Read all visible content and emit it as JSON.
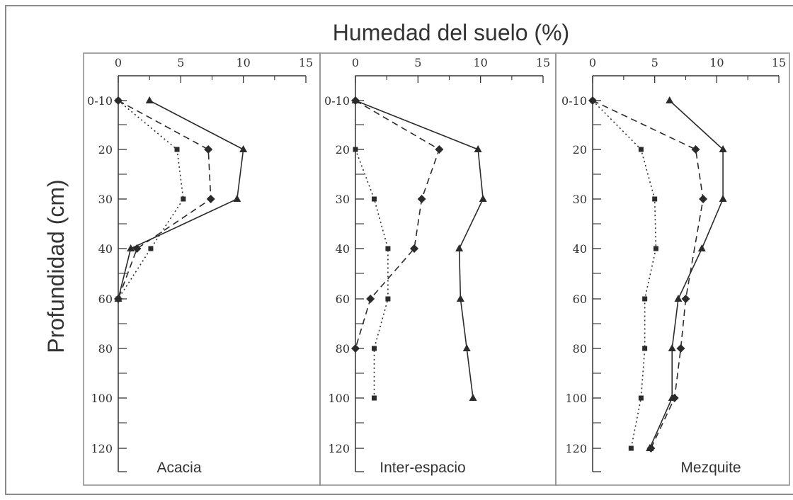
{
  "figure": {
    "title": "Humedad del suelo (%)",
    "ylabel": "Profundidad (cm)"
  },
  "style": {
    "frame": "#8a8a8a",
    "axis": "#333333",
    "series_color": "#2b2b2b"
  },
  "chart_data": [
    {
      "type": "line",
      "panel_label": "Acacia",
      "xlim": [
        0,
        15
      ],
      "x_ticks": [
        "0",
        "5",
        "10",
        "15"
      ],
      "y_ticks": [
        "0-10",
        "20",
        "30",
        "40",
        "60",
        "80",
        "100",
        "120"
      ],
      "series": [
        {
          "marker": "triangle",
          "line": "solid",
          "points": [
            {
              "x": 2.5,
              "y": "0-10"
            },
            {
              "x": 10,
              "y": "20"
            },
            {
              "x": 9.5,
              "y": "30"
            },
            {
              "x": 1,
              "y": "40"
            },
            {
              "x": 0,
              "y": "60"
            }
          ]
        },
        {
          "marker": "diamond",
          "line": "dashed",
          "points": [
            {
              "x": 0,
              "y": "0-10"
            },
            {
              "x": 7.2,
              "y": "20"
            },
            {
              "x": 7.4,
              "y": "30"
            },
            {
              "x": 1.5,
              "y": "40"
            },
            {
              "x": 0,
              "y": "60"
            }
          ]
        },
        {
          "marker": "square",
          "line": "dotted",
          "points": [
            {
              "x": 0,
              "y": "0-10"
            },
            {
              "x": 4.7,
              "y": "20"
            },
            {
              "x": 5.2,
              "y": "30"
            },
            {
              "x": 2.6,
              "y": "40"
            },
            {
              "x": 0,
              "y": "60"
            }
          ]
        }
      ]
    },
    {
      "type": "line",
      "panel_label": "Inter-espacio",
      "xlim": [
        0,
        15
      ],
      "x_ticks": [
        "0",
        "5",
        "10",
        "15"
      ],
      "y_ticks": [
        "0-10",
        "20",
        "30",
        "40",
        "60",
        "80",
        "100",
        "120"
      ],
      "series": [
        {
          "marker": "triangle",
          "line": "solid",
          "points": [
            {
              "x": 0,
              "y": "0-10"
            },
            {
              "x": 9.8,
              "y": "20"
            },
            {
              "x": 10.2,
              "y": "30"
            },
            {
              "x": 8.3,
              "y": "40"
            },
            {
              "x": 8.4,
              "y": "60"
            },
            {
              "x": 8.9,
              "y": "80"
            },
            {
              "x": 9.4,
              "y": "100"
            }
          ]
        },
        {
          "marker": "diamond",
          "line": "dashed",
          "points": [
            {
              "x": 0,
              "y": "0-10"
            },
            {
              "x": 6.7,
              "y": "20"
            },
            {
              "x": 5.3,
              "y": "30"
            },
            {
              "x": 4.7,
              "y": "40"
            },
            {
              "x": 1.2,
              "y": "60"
            },
            {
              "x": 0,
              "y": "80"
            }
          ]
        },
        {
          "marker": "square",
          "line": "dotted",
          "points": [
            {
              "x": 0,
              "y": "20"
            },
            {
              "x": 1.5,
              "y": "30"
            },
            {
              "x": 2.6,
              "y": "40"
            },
            {
              "x": 2.6,
              "y": "60"
            },
            {
              "x": 1.5,
              "y": "80"
            },
            {
              "x": 1.5,
              "y": "100"
            }
          ]
        }
      ]
    },
    {
      "type": "line",
      "panel_label": "Mezquite",
      "xlim": [
        0,
        15
      ],
      "x_ticks": [
        "0",
        "5",
        "10",
        "15"
      ],
      "y_ticks": [
        "0-10",
        "20",
        "30",
        "40",
        "60",
        "80",
        "100",
        "120"
      ],
      "series": [
        {
          "marker": "triangle",
          "line": "solid",
          "points": [
            {
              "x": 6.2,
              "y": "0-10"
            },
            {
              "x": 10.5,
              "y": "20"
            },
            {
              "x": 10.5,
              "y": "30"
            },
            {
              "x": 8.8,
              "y": "40"
            },
            {
              "x": 6.9,
              "y": "60"
            },
            {
              "x": 6.4,
              "y": "80"
            },
            {
              "x": 6.4,
              "y": "100"
            },
            {
              "x": 4.6,
              "y": "120"
            }
          ]
        },
        {
          "marker": "diamond",
          "line": "dashed",
          "points": [
            {
              "x": 0,
              "y": "0-10"
            },
            {
              "x": 8.3,
              "y": "20"
            },
            {
              "x": 8.9,
              "y": "30"
            },
            {
              "x": 7.5,
              "y": "60"
            },
            {
              "x": 7.1,
              "y": "80"
            },
            {
              "x": 6.6,
              "y": "100"
            },
            {
              "x": 4.7,
              "y": "120"
            }
          ]
        },
        {
          "marker": "square",
          "line": "dotted",
          "points": [
            {
              "x": 0,
              "y": "0-10"
            },
            {
              "x": 3.9,
              "y": "20"
            },
            {
              "x": 5.0,
              "y": "30"
            },
            {
              "x": 5.1,
              "y": "40"
            },
            {
              "x": 4.2,
              "y": "60"
            },
            {
              "x": 4.2,
              "y": "80"
            },
            {
              "x": 3.9,
              "y": "100"
            },
            {
              "x": 3.1,
              "y": "120"
            }
          ]
        }
      ]
    }
  ]
}
